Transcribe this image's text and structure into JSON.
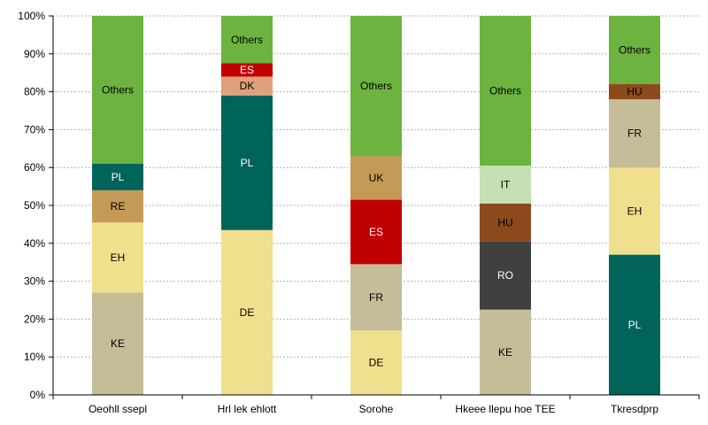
{
  "chart_data": {
    "type": "bar",
    "stacked": true,
    "percent": true,
    "ylim": [
      0,
      100
    ],
    "yticks": [
      "0%",
      "10%",
      "20%",
      "30%",
      "40%",
      "50%",
      "60%",
      "70%",
      "80%",
      "90%",
      "100%"
    ],
    "grid": true,
    "categories": [
      {
        "name": "Oeohll ssepl",
        "segments": [
          {
            "label": "KE",
            "value": 27,
            "color": "#c4bd97"
          },
          {
            "label": "EH",
            "value": 18.5,
            "color": "#f0df8c"
          },
          {
            "label": "RE",
            "value": 8.5,
            "color": "#c49a56"
          },
          {
            "label": "PL",
            "value": 7,
            "color": "#00645a"
          },
          {
            "label": "Others",
            "value": 39,
            "color": "#6cb33f"
          }
        ]
      },
      {
        "name": "Hrl lek ehlott",
        "segments": [
          {
            "label": "DE",
            "value": 43.5,
            "color": "#f0df8c"
          },
          {
            "label": "PL",
            "value": 35.5,
            "color": "#00645a"
          },
          {
            "label": "DK",
            "value": 5,
            "color": "#e0a07c"
          },
          {
            "label": "ES",
            "value": 3.5,
            "color": "#c00000"
          },
          {
            "label": "Others",
            "value": 12.5,
            "color": "#6cb33f"
          }
        ]
      },
      {
        "name": "Sorohe",
        "segments": [
          {
            "label": "DE",
            "value": 17,
            "color": "#f0df8c"
          },
          {
            "label": "FR",
            "value": 17.5,
            "color": "#c4bd97"
          },
          {
            "label": "ES",
            "value": 17,
            "color": "#c00000"
          },
          {
            "label": "UK",
            "value": 11.5,
            "color": "#c49a56"
          },
          {
            "label": "Others",
            "value": 37,
            "color": "#6cb33f"
          }
        ]
      },
      {
        "name": "Hkeee llepu hoe TEE",
        "segments": [
          {
            "label": "KE",
            "value": 22.5,
            "color": "#c4bd97"
          },
          {
            "label": "RO",
            "value": 18,
            "color": "#404040"
          },
          {
            "label": "HU",
            "value": 10,
            "color": "#8c4a1c"
          },
          {
            "label": "IT",
            "value": 10,
            "color": "#c5e0b4"
          },
          {
            "label": "Others",
            "value": 39.5,
            "color": "#6cb33f"
          }
        ]
      },
      {
        "name": "Tkresdprp",
        "segments": [
          {
            "label": "PL",
            "value": 37,
            "color": "#00645a"
          },
          {
            "label": "EH",
            "value": 23,
            "color": "#f0df8c"
          },
          {
            "label": "FR",
            "value": 18,
            "color": "#c4bd97"
          },
          {
            "label": "HU",
            "value": 4,
            "color": "#8c4a1c"
          },
          {
            "label": "Others",
            "value": 18,
            "color": "#6cb33f"
          }
        ]
      }
    ]
  }
}
